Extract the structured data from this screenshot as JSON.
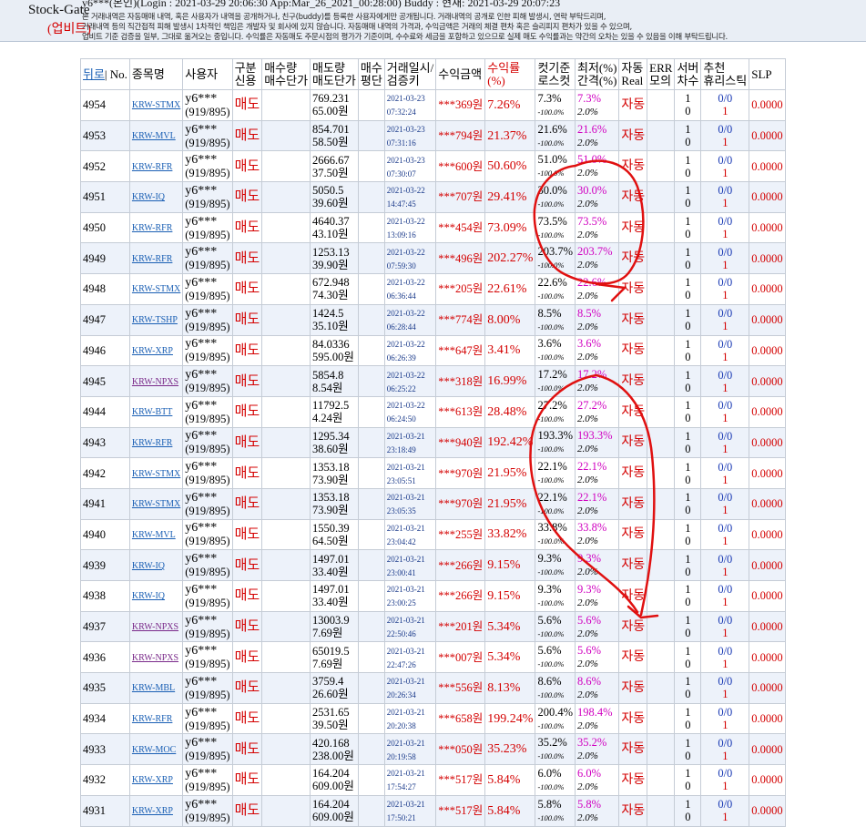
{
  "header": {
    "app_name": "Stock-Gate",
    "exchange": "(업비트)",
    "login_line": "y6***(본인)(Login : 2021-03-29 20:06:30 App:Mar_26_2021_00:28:00) Buddy :  현재: 2021-03-29 20:07:23",
    "notice": [
      "본 거래내역은 자동매매 내역, 혹은 사용자가 내역을 공개하거나, 친구(buddy)를 등록한 사용자에게만 공개됩니다. 거래내역의 공개로 인한 피해 발생시, 연락 부탁드리며,",
      "거래내역 등의 직간접적 피해 발생시 1차적인 책임은 개발자 및 회사에 있지 않습니다. 자동매매 내역의 가격과, 수익금액은 거래의 체결 편차 혹은 슬리피지 편차가 있을 수 있으며,",
      "업비트 기준 검증을 일부, 그대로 옮겨오는 중입니다. 수익률은 자동매도 주문시점의 평가가 기준이며, 수수료와 세금을 포함하고 있으므로 실제 매도 수익률과는 약간의 오차는 있을 수 있음을 이해 부탁드립니다."
    ]
  },
  "table": {
    "columns": [
      [
        "뒤로",
        "No."
      ],
      [
        "종목명"
      ],
      [
        "사용자"
      ],
      [
        "구분",
        "신용"
      ],
      [
        "매수량",
        "매수단가"
      ],
      [
        "매도량",
        "매도단가"
      ],
      [
        "매수",
        "평단"
      ],
      [
        "거래일시/",
        "검증키"
      ],
      [
        "수익금액"
      ],
      [
        "수익률",
        "(%)"
      ],
      [
        "컷기준",
        "로스컷"
      ],
      [
        "최저(%)",
        "간격(%)"
      ],
      [
        "자동",
        "Real"
      ],
      [
        "ERR",
        "모의"
      ],
      [
        "서버",
        "차수"
      ],
      [
        "추천",
        "휴리스틱"
      ],
      [
        "SLP"
      ]
    ],
    "rows": [
      {
        "no": "4954",
        "symbol": "KRW-STMX",
        "user": "y6***",
        "user_stat": "(919/895)",
        "side": "매도",
        "sell_qty": "769.231",
        "sell_price": "65.00원",
        "date": "2021-03-23",
        "time": "07:32:24",
        "profit": "***369원",
        "rate": "7.26%",
        "cut": "7.3%",
        "loss_cut": "-100.0%",
        "low": "7.3%",
        "gap": "2.0%",
        "auto": "자동",
        "server": "1",
        "degree": "0",
        "rec": "0/0",
        "heur": "1",
        "slp": "0.0000"
      },
      {
        "no": "4953",
        "symbol": "KRW-MVL",
        "user": "y6***",
        "user_stat": "(919/895)",
        "side": "매도",
        "sell_qty": "854.701",
        "sell_price": "58.50원",
        "date": "2021-03-23",
        "time": "07:31:16",
        "profit": "***794원",
        "rate": "21.37%",
        "cut": "21.6%",
        "loss_cut": "-100.0%",
        "low": "21.6%",
        "gap": "2.0%",
        "auto": "자동",
        "server": "1",
        "degree": "0",
        "rec": "0/0",
        "heur": "1",
        "slp": "0.0000"
      },
      {
        "no": "4952",
        "symbol": "KRW-RFR",
        "user": "y6***",
        "user_stat": "(919/895)",
        "side": "매도",
        "sell_qty": "2666.67",
        "sell_price": "37.50원",
        "date": "2021-03-23",
        "time": "07:30:07",
        "profit": "***600원",
        "rate": "50.60%",
        "cut": "51.0%",
        "loss_cut": "-100.0%",
        "low": "51.0%",
        "gap": "2.0%",
        "auto": "자동",
        "server": "1",
        "degree": "0",
        "rec": "0/0",
        "heur": "1",
        "slp": "0.0000"
      },
      {
        "no": "4951",
        "symbol": "KRW-IQ",
        "user": "y6***",
        "user_stat": "(919/895)",
        "side": "매도",
        "sell_qty": "5050.5",
        "sell_price": "39.60원",
        "date": "2021-03-22",
        "time": "14:47:45",
        "profit": "***707원",
        "rate": "29.41%",
        "cut": "30.0%",
        "loss_cut": "-100.0%",
        "low": "30.0%",
        "gap": "2.0%",
        "auto": "자동",
        "server": "1",
        "degree": "0",
        "rec": "0/0",
        "heur": "1",
        "slp": "0.0000"
      },
      {
        "no": "4950",
        "symbol": "KRW-RFR",
        "user": "y6***",
        "user_stat": "(919/895)",
        "side": "매도",
        "sell_qty": "4640.37",
        "sell_price": "43.10원",
        "date": "2021-03-22",
        "time": "13:09:16",
        "profit": "***454원",
        "rate": "73.09%",
        "cut": "73.5%",
        "loss_cut": "-100.0%",
        "low": "73.5%",
        "gap": "2.0%",
        "auto": "자동",
        "server": "1",
        "degree": "0",
        "rec": "0/0",
        "heur": "1",
        "slp": "0.0000"
      },
      {
        "no": "4949",
        "symbol": "KRW-RFR",
        "user": "y6***",
        "user_stat": "(919/895)",
        "side": "매도",
        "sell_qty": "1253.13",
        "sell_price": "39.90원",
        "date": "2021-03-22",
        "time": "07:59:30",
        "profit": "***496원",
        "rate": "202.27%",
        "cut": "203.7%",
        "loss_cut": "-100.0%",
        "low": "203.7%",
        "gap": "2.0%",
        "auto": "자동",
        "server": "1",
        "degree": "0",
        "rec": "0/0",
        "heur": "1",
        "slp": "0.0000"
      },
      {
        "no": "4948",
        "symbol": "KRW-STMX",
        "user": "y6***",
        "user_stat": "(919/895)",
        "side": "매도",
        "sell_qty": "672.948",
        "sell_price": "74.30원",
        "date": "2021-03-22",
        "time": "06:36:44",
        "profit": "***205원",
        "rate": "22.61%",
        "cut": "22.6%",
        "loss_cut": "-100.0%",
        "low": "22.6%",
        "gap": "2.0%",
        "auto": "자동",
        "server": "1",
        "degree": "0",
        "rec": "0/0",
        "heur": "1",
        "slp": "0.0000"
      },
      {
        "no": "4947",
        "symbol": "KRW-TSHP",
        "user": "y6***",
        "user_stat": "(919/895)",
        "side": "매도",
        "sell_qty": "1424.5",
        "sell_price": "35.10원",
        "date": "2021-03-22",
        "time": "06:28:44",
        "profit": "***774원",
        "rate": "8.00%",
        "cut": "8.5%",
        "loss_cut": "-100.0%",
        "low": "8.5%",
        "gap": "2.0%",
        "auto": "자동",
        "server": "1",
        "degree": "0",
        "rec": "0/0",
        "heur": "1",
        "slp": "0.0000"
      },
      {
        "no": "4946",
        "symbol": "KRW-XRP",
        "user": "y6***",
        "user_stat": "(919/895)",
        "side": "매도",
        "sell_qty": "84.0336",
        "sell_price": "595.00원",
        "date": "2021-03-22",
        "time": "06:26:39",
        "profit": "***647원",
        "rate": "3.41%",
        "cut": "3.6%",
        "loss_cut": "-100.0%",
        "low": "3.6%",
        "gap": "2.0%",
        "auto": "자동",
        "server": "1",
        "degree": "0",
        "rec": "0/0",
        "heur": "1",
        "slp": "0.0000"
      },
      {
        "no": "4945",
        "symbol": "KRW-NPXS",
        "user": "y6***",
        "user_stat": "(919/895)",
        "side": "매도",
        "sell_qty": "5854.8",
        "sell_price": "8.54원",
        "date": "2021-03-22",
        "time": "06:25:22",
        "profit": "***318원",
        "rate": "16.99%",
        "cut": "17.2%",
        "loss_cut": "-100.0%",
        "low": "17.2%",
        "gap": "2.0%",
        "auto": "자동",
        "server": "1",
        "degree": "0",
        "rec": "0/0",
        "heur": "1",
        "slp": "0.0000"
      },
      {
        "no": "4944",
        "symbol": "KRW-BTT",
        "user": "y6***",
        "user_stat": "(919/895)",
        "side": "매도",
        "sell_qty": "11792.5",
        "sell_price": "4.24원",
        "date": "2021-03-22",
        "time": "06:24:50",
        "profit": "***613원",
        "rate": "28.48%",
        "cut": "27.2%",
        "loss_cut": "-100.0%",
        "low": "27.2%",
        "gap": "2.0%",
        "auto": "자동",
        "server": "1",
        "degree": "0",
        "rec": "0/0",
        "heur": "1",
        "slp": "0.0000"
      },
      {
        "no": "4943",
        "symbol": "KRW-RFR",
        "user": "y6***",
        "user_stat": "(919/895)",
        "side": "매도",
        "sell_qty": "1295.34",
        "sell_price": "38.60원",
        "date": "2021-03-21",
        "time": "23:18:49",
        "profit": "***940원",
        "rate": "192.42%",
        "cut": "193.3%",
        "loss_cut": "-100.0%",
        "low": "193.3%",
        "gap": "2.0%",
        "auto": "자동",
        "server": "1",
        "degree": "0",
        "rec": "0/0",
        "heur": "1",
        "slp": "0.0000"
      },
      {
        "no": "4942",
        "symbol": "KRW-STMX",
        "user": "y6***",
        "user_stat": "(919/895)",
        "side": "매도",
        "sell_qty": "1353.18",
        "sell_price": "73.90원",
        "date": "2021-03-21",
        "time": "23:05:51",
        "profit": "***970원",
        "rate": "21.95%",
        "cut": "22.1%",
        "loss_cut": "-100.0%",
        "low": "22.1%",
        "gap": "2.0%",
        "auto": "자동",
        "server": "1",
        "degree": "0",
        "rec": "0/0",
        "heur": "1",
        "slp": "0.0000"
      },
      {
        "no": "4941",
        "symbol": "KRW-STMX",
        "user": "y6***",
        "user_stat": "(919/895)",
        "side": "매도",
        "sell_qty": "1353.18",
        "sell_price": "73.90원",
        "date": "2021-03-21",
        "time": "23:05:35",
        "profit": "***970원",
        "rate": "21.95%",
        "cut": "22.1%",
        "loss_cut": "-100.0%",
        "low": "22.1%",
        "gap": "2.0%",
        "auto": "자동",
        "server": "1",
        "degree": "0",
        "rec": "0/0",
        "heur": "1",
        "slp": "0.0000"
      },
      {
        "no": "4940",
        "symbol": "KRW-MVL",
        "user": "y6***",
        "user_stat": "(919/895)",
        "side": "매도",
        "sell_qty": "1550.39",
        "sell_price": "64.50원",
        "date": "2021-03-21",
        "time": "23:04:42",
        "profit": "***255원",
        "rate": "33.82%",
        "cut": "33.8%",
        "loss_cut": "-100.0%",
        "low": "33.8%",
        "gap": "2.0%",
        "auto": "자동",
        "server": "1",
        "degree": "0",
        "rec": "0/0",
        "heur": "1",
        "slp": "0.0000"
      },
      {
        "no": "4939",
        "symbol": "KRW-IQ",
        "user": "y6***",
        "user_stat": "(919/895)",
        "side": "매도",
        "sell_qty": "1497.01",
        "sell_price": "33.40원",
        "date": "2021-03-21",
        "time": "23:00:41",
        "profit": "***266원",
        "rate": "9.15%",
        "cut": "9.3%",
        "loss_cut": "-100.0%",
        "low": "9.3%",
        "gap": "2.0%",
        "auto": "자동",
        "server": "1",
        "degree": "0",
        "rec": "0/0",
        "heur": "1",
        "slp": "0.0000"
      },
      {
        "no": "4938",
        "symbol": "KRW-IQ",
        "user": "y6***",
        "user_stat": "(919/895)",
        "side": "매도",
        "sell_qty": "1497.01",
        "sell_price": "33.40원",
        "date": "2021-03-21",
        "time": "23:00:25",
        "profit": "***266원",
        "rate": "9.15%",
        "cut": "9.3%",
        "loss_cut": "-100.0%",
        "low": "9.3%",
        "gap": "2.0%",
        "auto": "자동",
        "server": "1",
        "degree": "0",
        "rec": "0/0",
        "heur": "1",
        "slp": "0.0000"
      },
      {
        "no": "4937",
        "symbol": "KRW-NPXS",
        "user": "y6***",
        "user_stat": "(919/895)",
        "side": "매도",
        "sell_qty": "13003.9",
        "sell_price": "7.69원",
        "date": "2021-03-21",
        "time": "22:50:46",
        "profit": "***201원",
        "rate": "5.34%",
        "cut": "5.6%",
        "loss_cut": "-100.0%",
        "low": "5.6%",
        "gap": "2.0%",
        "auto": "자동",
        "server": "1",
        "degree": "0",
        "rec": "0/0",
        "heur": "1",
        "slp": "0.0000"
      },
      {
        "no": "4936",
        "symbol": "KRW-NPXS",
        "user": "y6***",
        "user_stat": "(919/895)",
        "side": "매도",
        "sell_qty": "65019.5",
        "sell_price": "7.69원",
        "date": "2021-03-21",
        "time": "22:47:26",
        "profit": "***007원",
        "rate": "5.34%",
        "cut": "5.6%",
        "loss_cut": "-100.0%",
        "low": "5.6%",
        "gap": "2.0%",
        "auto": "자동",
        "server": "1",
        "degree": "0",
        "rec": "0/0",
        "heur": "1",
        "slp": "0.0000"
      },
      {
        "no": "4935",
        "symbol": "KRW-MBL",
        "user": "y6***",
        "user_stat": "(919/895)",
        "side": "매도",
        "sell_qty": "3759.4",
        "sell_price": "26.60원",
        "date": "2021-03-21",
        "time": "20:26:34",
        "profit": "***556원",
        "rate": "8.13%",
        "cut": "8.6%",
        "loss_cut": "-100.0%",
        "low": "8.6%",
        "gap": "2.0%",
        "auto": "자동",
        "server": "1",
        "degree": "0",
        "rec": "0/0",
        "heur": "1",
        "slp": "0.0000"
      },
      {
        "no": "4934",
        "symbol": "KRW-RFR",
        "user": "y6***",
        "user_stat": "(919/895)",
        "side": "매도",
        "sell_qty": "2531.65",
        "sell_price": "39.50원",
        "date": "2021-03-21",
        "time": "20:20:38",
        "profit": "***658원",
        "rate": "199.24%",
        "cut": "200.4%",
        "loss_cut": "-100.0%",
        "low": "198.4%",
        "gap": "2.0%",
        "auto": "자동",
        "server": "1",
        "degree": "0",
        "rec": "0/0",
        "heur": "1",
        "slp": "0.0000"
      },
      {
        "no": "4933",
        "symbol": "KRW-MOC",
        "user": "y6***",
        "user_stat": "(919/895)",
        "side": "매도",
        "sell_qty": "420.168",
        "sell_price": "238.00원",
        "date": "2021-03-21",
        "time": "20:19:58",
        "profit": "***050원",
        "rate": "35.23%",
        "cut": "35.2%",
        "loss_cut": "-100.0%",
        "low": "35.2%",
        "gap": "2.0%",
        "auto": "자동",
        "server": "1",
        "degree": "0",
        "rec": "0/0",
        "heur": "1",
        "slp": "0.0000"
      },
      {
        "no": "4932",
        "symbol": "KRW-XRP",
        "user": "y6***",
        "user_stat": "(919/895)",
        "side": "매도",
        "sell_qty": "164.204",
        "sell_price": "609.00원",
        "date": "2021-03-21",
        "time": "17:54:27",
        "profit": "***517원",
        "rate": "5.84%",
        "cut": "6.0%",
        "loss_cut": "-100.0%",
        "low": "6.0%",
        "gap": "2.0%",
        "auto": "자동",
        "server": "1",
        "degree": "0",
        "rec": "0/0",
        "heur": "1",
        "slp": "0.0000"
      },
      {
        "no": "4931",
        "symbol": "KRW-XRP",
        "user": "y6***",
        "user_stat": "(919/895)",
        "side": "매도",
        "sell_qty": "164.204",
        "sell_price": "609.00원",
        "date": "2021-03-21",
        "time": "17:50:21",
        "profit": "***517원",
        "rate": "5.84%",
        "cut": "5.8%",
        "loss_cut": "-100.0%",
        "low": "5.8%",
        "gap": "2.0%",
        "auto": "자동",
        "server": "1",
        "degree": "0",
        "rec": "0/0",
        "heur": "1",
        "slp": "0.0000"
      }
    ]
  }
}
